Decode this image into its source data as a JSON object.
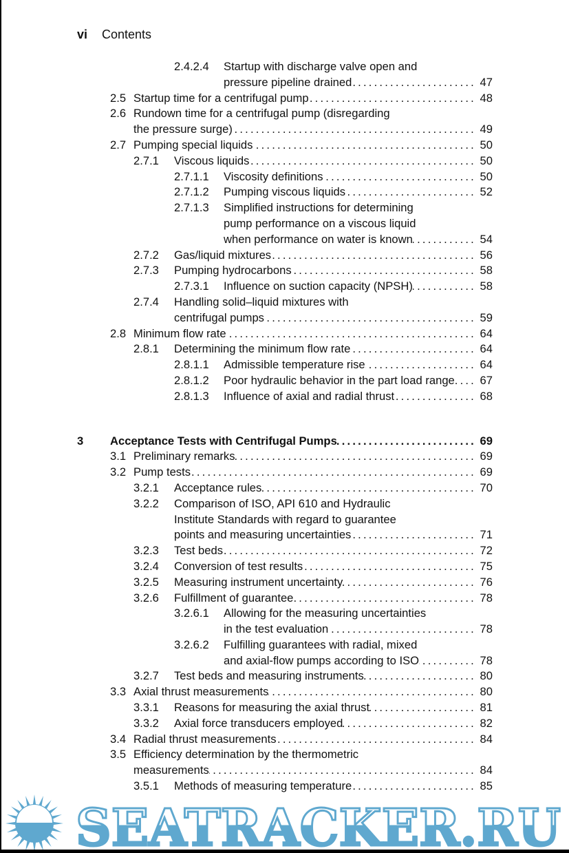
{
  "header": {
    "page_number": "vi",
    "running_title": "Contents"
  },
  "entries": [
    {
      "level": 3,
      "num": "2.4.2.4",
      "lines": [
        "Startup with discharge valve open and",
        "pressure pipeline drained"
      ],
      "page": "47"
    },
    {
      "level": 1,
      "num": "2.5",
      "lines": [
        "Startup time for a centrifugal pump"
      ],
      "page": "48"
    },
    {
      "level": 1,
      "num": "2.6",
      "lines": [
        "Rundown time for a centrifugal pump (disregarding",
        "the pressure surge)"
      ],
      "page": "49"
    },
    {
      "level": 1,
      "num": "2.7",
      "lines": [
        "Pumping special liquids"
      ],
      "page": "50"
    },
    {
      "level": 2,
      "num": "2.7.1",
      "lines": [
        "Viscous liquids"
      ],
      "page": "50"
    },
    {
      "level": 3,
      "num": "2.7.1.1",
      "lines": [
        "Viscosity definitions"
      ],
      "page": "50"
    },
    {
      "level": 3,
      "num": "2.7.1.2",
      "lines": [
        "Pumping viscous liquids"
      ],
      "page": "52"
    },
    {
      "level": 3,
      "num": "2.7.1.3",
      "lines": [
        "Simplified instructions for determining",
        "pump performance on a viscous liquid",
        "when performance on water is known"
      ],
      "page": "54"
    },
    {
      "level": 2,
      "num": "2.7.2",
      "lines": [
        "Gas/liquid mixtures"
      ],
      "page": "56"
    },
    {
      "level": 2,
      "num": "2.7.3",
      "lines": [
        "Pumping hydrocarbons"
      ],
      "page": "58"
    },
    {
      "level": 3,
      "num": "2.7.3.1",
      "lines": [
        "Influence on suction capacity (NPSH)"
      ],
      "page": "58"
    },
    {
      "level": 2,
      "num": "2.7.4",
      "lines": [
        "Handling solid–liquid mixtures with",
        "centrifugal pumps"
      ],
      "page": "59"
    },
    {
      "level": 1,
      "num": "2.8",
      "lines": [
        "Minimum flow rate"
      ],
      "page": "64"
    },
    {
      "level": 2,
      "num": "2.8.1",
      "lines": [
        "Determining the minimum flow rate"
      ],
      "page": "64"
    },
    {
      "level": 3,
      "num": "2.8.1.1",
      "lines": [
        "Admissible temperature rise"
      ],
      "page": "64"
    },
    {
      "level": 3,
      "num": "2.8.1.2",
      "lines": [
        "Poor hydraulic behavior in the part load range"
      ],
      "page": "67"
    },
    {
      "level": 3,
      "num": "2.8.1.3",
      "lines": [
        "Influence of axial and radial thrust"
      ],
      "page": "68"
    },
    {
      "level": 0,
      "num": "3",
      "lines": [
        "Acceptance Tests with Centrifugal Pumps"
      ],
      "page": "69"
    },
    {
      "level": 1,
      "num": "3.1",
      "lines": [
        "Preliminary remarks"
      ],
      "page": "69"
    },
    {
      "level": 1,
      "num": "3.2",
      "lines": [
        "Pump tests"
      ],
      "page": "69"
    },
    {
      "level": 2,
      "num": "3.2.1",
      "lines": [
        "Acceptance rules"
      ],
      "page": "70"
    },
    {
      "level": 2,
      "num": "3.2.2",
      "lines": [
        "Comparison of ISO, API 610 and Hydraulic",
        "Institute Standards with regard to guarantee",
        "points and measuring uncertainties"
      ],
      "page": "71"
    },
    {
      "level": 2,
      "num": "3.2.3",
      "lines": [
        "Test beds"
      ],
      "page": "72"
    },
    {
      "level": 2,
      "num": "3.2.4",
      "lines": [
        "Conversion of test results"
      ],
      "page": "75"
    },
    {
      "level": 2,
      "num": "3.2.5",
      "lines": [
        "Measuring instrument uncertainty"
      ],
      "page": "76"
    },
    {
      "level": 2,
      "num": "3.2.6",
      "lines": [
        "Fulfillment of guarantee"
      ],
      "page": "78"
    },
    {
      "level": 3,
      "num": "3.2.6.1",
      "lines": [
        "Allowing for the measuring uncertainties",
        "in the test evaluation"
      ],
      "page": "78"
    },
    {
      "level": 3,
      "num": "3.2.6.2",
      "lines": [
        "Fulfilling guarantees with radial, mixed",
        "and axial-flow pumps according to ISO"
      ],
      "page": "78"
    },
    {
      "level": 2,
      "num": "3.2.7",
      "lines": [
        "Test beds and measuring instruments"
      ],
      "page": "80"
    },
    {
      "level": 1,
      "num": "3.3",
      "lines": [
        "Axial thrust measurements"
      ],
      "page": "80"
    },
    {
      "level": 2,
      "num": "3.3.1",
      "lines": [
        "Reasons for measuring the axial thrust"
      ],
      "page": "81"
    },
    {
      "level": 2,
      "num": "3.3.2",
      "lines": [
        "Axial force transducers employed"
      ],
      "page": "82"
    },
    {
      "level": 1,
      "num": "3.4",
      "lines": [
        "Radial thrust measurements"
      ],
      "page": "84"
    },
    {
      "level": 1,
      "num": "3.5",
      "lines": [
        "Efficiency determination by the thermometric",
        "measurements"
      ],
      "page": "84"
    },
    {
      "level": 2,
      "num": "3.5.1",
      "lines": [
        "Methods of measuring temperature"
      ],
      "page": "85"
    }
  ],
  "watermark": {
    "text": "SEATRACKER.RU",
    "color": "#5fa8cf"
  }
}
